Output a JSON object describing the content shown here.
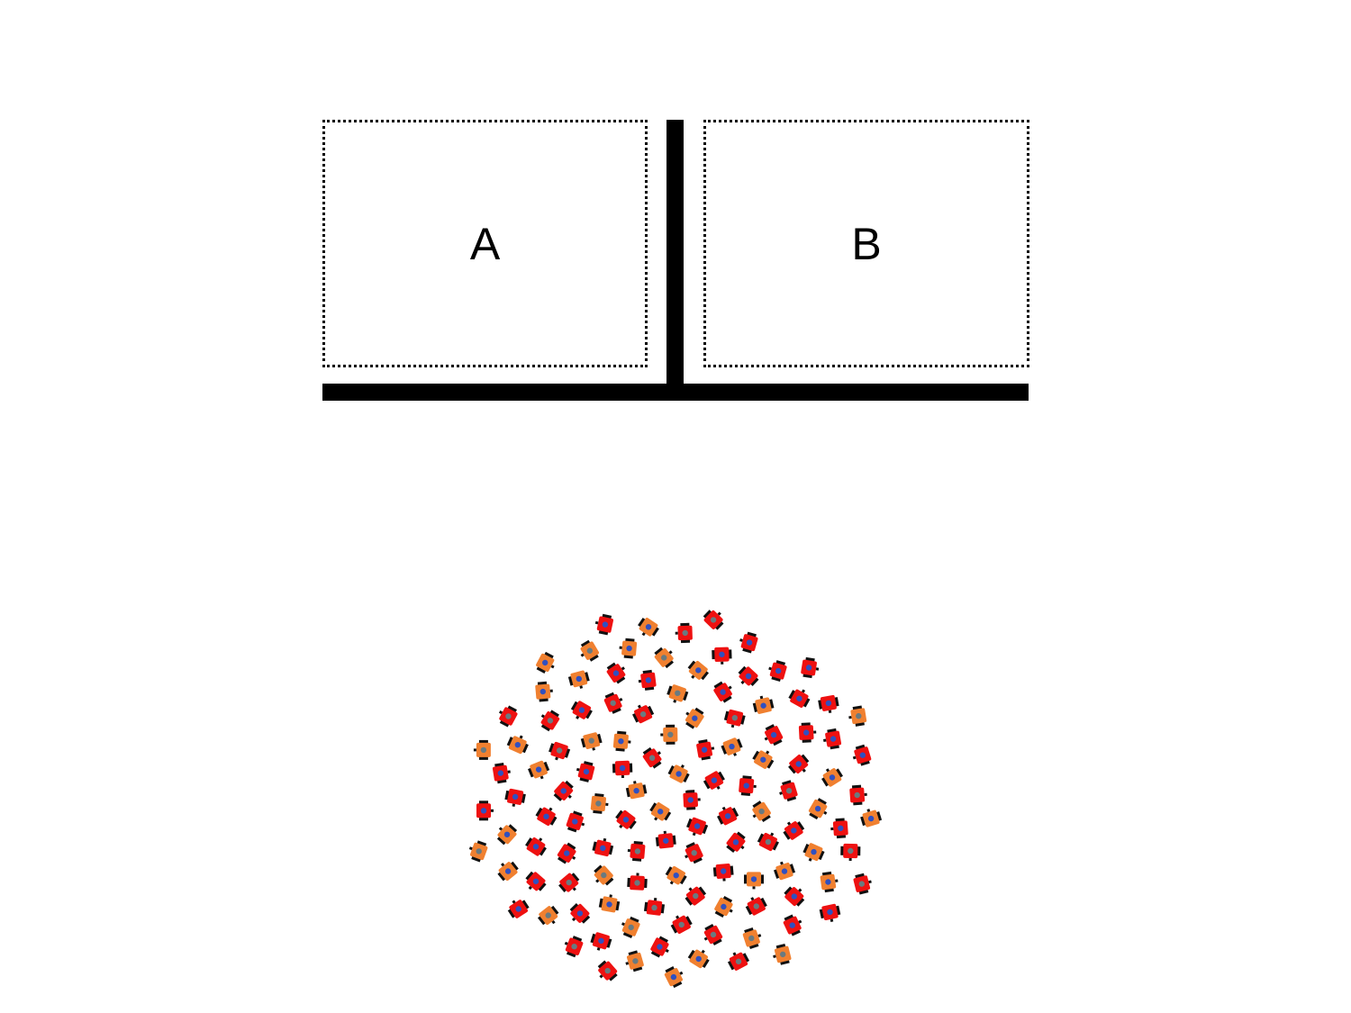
{
  "regions": {
    "a": {
      "label": "A"
    },
    "b": {
      "label": "B"
    }
  },
  "colors": {
    "wall": "#000000",
    "region_border": "#000000",
    "robot_red": "#ee1111",
    "robot_orange": "#f08030",
    "robot_marker_blue": "#3050c0",
    "robot_marker_gray": "#6a7a80",
    "robot_wheel": "#111111"
  },
  "swarm": {
    "description_count": 120,
    "robot_types": [
      "red-robot",
      "orange-robot"
    ]
  }
}
